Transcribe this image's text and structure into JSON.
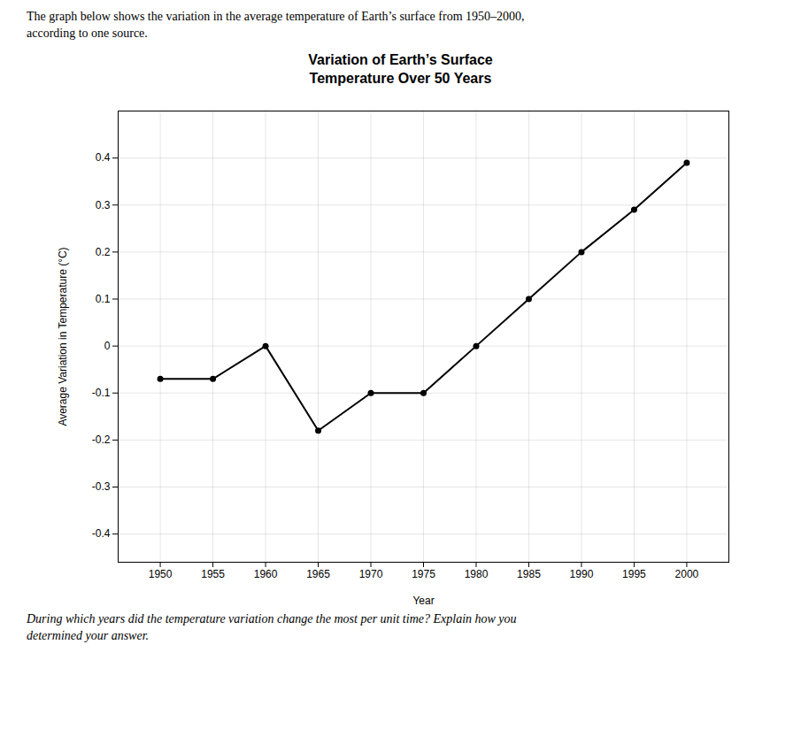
{
  "chart_data": {
    "type": "line",
    "title": "Variation of Earth’s Surface\nTemperature Over 50 Years",
    "subtitle": "The graph below shows the variation in the average temperature of Earth’s surface from 1950–2000,\naccording to one source.",
    "annotations": [
      "During which years did the temperature variation change the most per unit time? Explain how you",
      "determined your answer."
    ],
    "xlabel": "Year",
    "ylabel": "Average Variation in Temperature (°C)",
    "x": [
      1950,
      1955,
      1960,
      1965,
      1970,
      1975,
      1980,
      1985,
      1990,
      1995,
      2000
    ],
    "values": [
      -0.07,
      -0.07,
      0.0,
      -0.18,
      -0.1,
      -0.1,
      0.0,
      0.1,
      0.2,
      0.29,
      0.39
    ],
    "color": "#000000",
    "marker": "circle",
    "xlim": [
      1946,
      2004
    ],
    "ylim": [
      -0.46,
      0.5
    ],
    "xticks": [
      1950,
      1955,
      1960,
      1965,
      1970,
      1975,
      1980,
      1985,
      1990,
      1995,
      2000
    ],
    "yticks": [
      -0.4,
      -0.3,
      -0.2,
      -0.1,
      0,
      0.1,
      0.2,
      0.3,
      0.4
    ],
    "grid": true
  }
}
